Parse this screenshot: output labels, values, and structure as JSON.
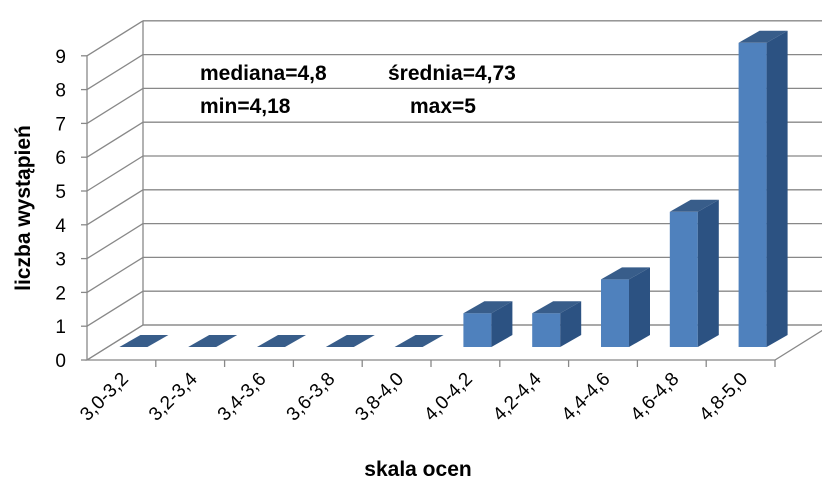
{
  "chart_data": {
    "type": "bar",
    "style": "3d-column",
    "categories": [
      "3,0-3,2",
      "3,2-3,4",
      "3,4-3,6",
      "3,6-3,8",
      "3,8-4,0",
      "4,0-4,2",
      "4,2-4,4",
      "4,4-4,6",
      "4,6-4,8",
      "4,8-5,0"
    ],
    "values": [
      0,
      0,
      0,
      0,
      0,
      1,
      1,
      2,
      4,
      9
    ],
    "xlabel": "skala ocen",
    "ylabel": "liczba wystąpień",
    "ylim": [
      0,
      9
    ],
    "yticks": [
      "0",
      "1",
      "2",
      "3",
      "4",
      "5",
      "6",
      "7",
      "8",
      "9"
    ],
    "grid": true,
    "legend": "none",
    "annotations": {
      "median": "mediana=4,8",
      "mean": "średnia=4,73",
      "min": "min=4,18",
      "max": "max=5"
    },
    "colors": {
      "bar_front": "#4F81BD",
      "bar_side": "#2C5282",
      "bar_top": "#385D8A",
      "grid": "#888888"
    }
  }
}
